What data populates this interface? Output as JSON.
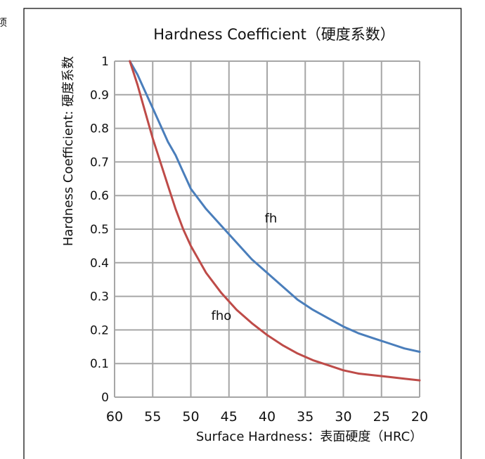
{
  "edge_text": "项",
  "chart_data": {
    "type": "line",
    "title": "Hardness Coefficient（硬度系数）",
    "xlabel": "Surface Hardness：表面硬度（HRC）",
    "ylabel": "Hardness Coefficient: 硬度系数",
    "x_ticks": [
      60,
      55,
      50,
      45,
      40,
      35,
      30,
      25,
      20
    ],
    "y_ticks": [
      0,
      0.1,
      0.2,
      0.3,
      0.4,
      0.5,
      0.6,
      0.7,
      0.8,
      0.9,
      1
    ],
    "x_tick_labels": [
      "60",
      "55",
      "50",
      "45",
      "40",
      "35",
      "30",
      "25",
      "20"
    ],
    "y_tick_labels": [
      "0",
      "0.1",
      "0.2",
      "0.3",
      "0.4",
      "0.5",
      "0.6",
      "0.7",
      "0.8",
      "0.9",
      "1"
    ],
    "xlim": [
      60,
      20
    ],
    "ylim": [
      0,
      1
    ],
    "x_reversed": true,
    "grid": true,
    "legend": "none",
    "series": [
      {
        "name": "fh",
        "color": "#4a7ebb",
        "x": [
          58,
          57,
          56,
          55,
          54,
          53,
          52,
          51,
          50,
          48,
          46,
          44,
          42,
          40,
          38,
          36,
          34,
          32,
          30,
          28,
          26,
          24,
          22,
          20
        ],
        "y": [
          1.0,
          0.96,
          0.91,
          0.86,
          0.81,
          0.76,
          0.72,
          0.67,
          0.62,
          0.56,
          0.51,
          0.46,
          0.41,
          0.37,
          0.33,
          0.29,
          0.26,
          0.235,
          0.21,
          0.19,
          0.175,
          0.16,
          0.145,
          0.135
        ]
      },
      {
        "name": "fho",
        "color": "#be4b48",
        "x": [
          58,
          57,
          56,
          55,
          54,
          53,
          52,
          51,
          50,
          48,
          46,
          44,
          42,
          40,
          38,
          36,
          34,
          32,
          30,
          28,
          26,
          24,
          22,
          20
        ],
        "y": [
          1.0,
          0.93,
          0.85,
          0.77,
          0.7,
          0.63,
          0.56,
          0.5,
          0.45,
          0.37,
          0.31,
          0.26,
          0.22,
          0.185,
          0.155,
          0.13,
          0.11,
          0.095,
          0.08,
          0.07,
          0.065,
          0.06,
          0.055,
          0.05
        ]
      }
    ],
    "annotations": [
      {
        "text": "fh",
        "x": 39.5,
        "y": 0.52
      },
      {
        "text": "fho",
        "x": 46,
        "y": 0.23
      }
    ]
  }
}
